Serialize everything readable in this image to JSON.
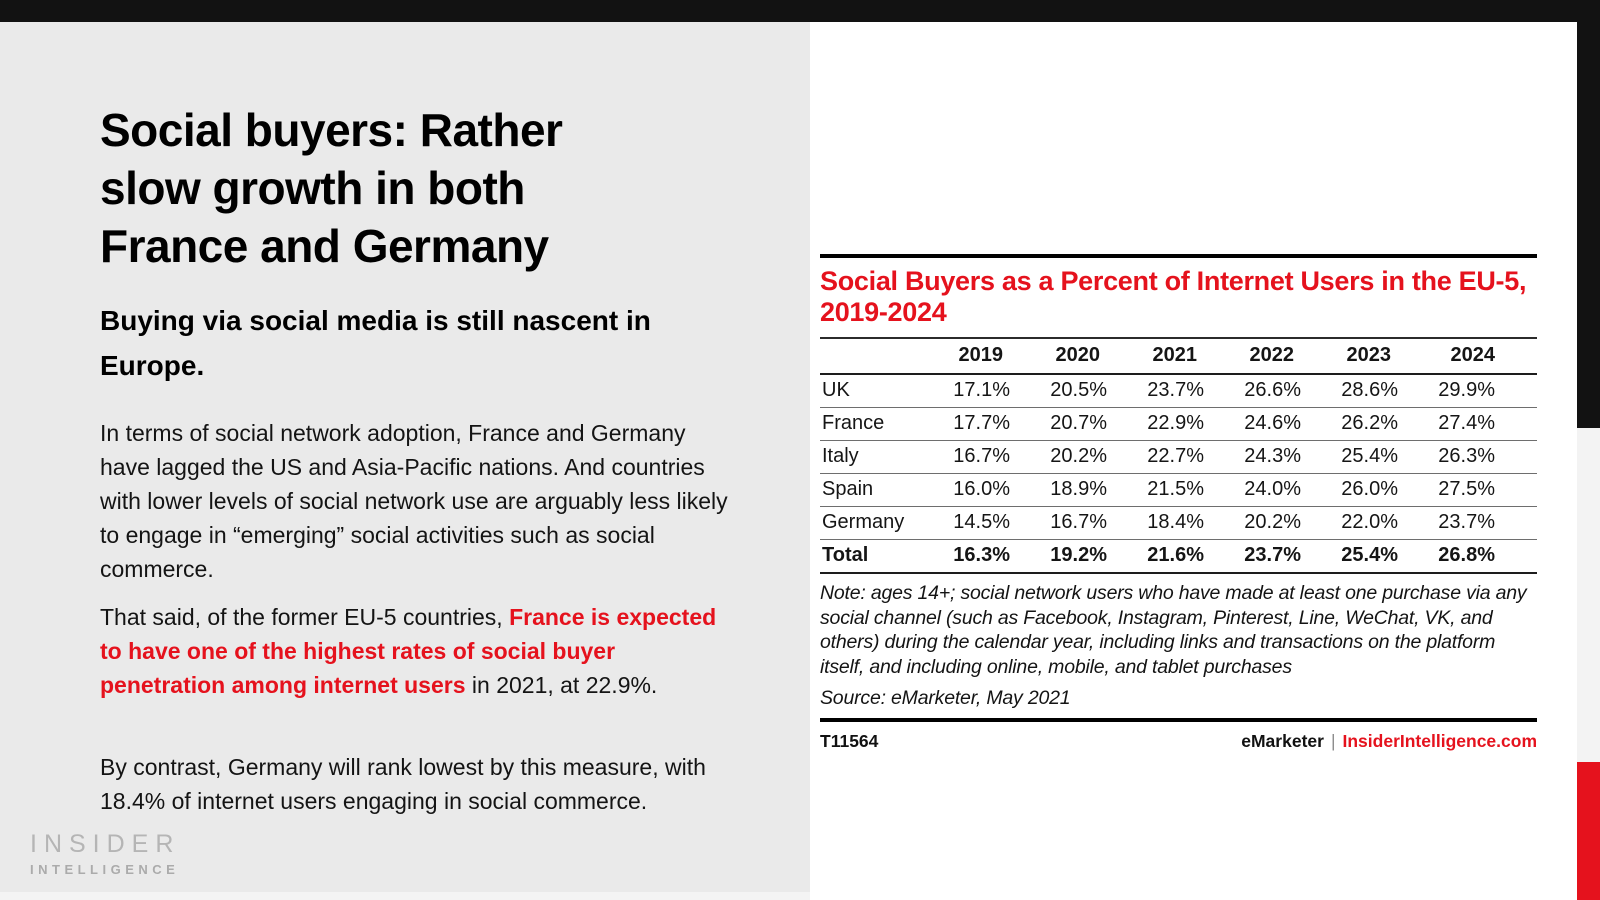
{
  "colors": {
    "accent_red": "#e5121d",
    "panel_gray": "#eaeaea",
    "strip_black": "#121212",
    "edge_gray": "#f3f3f3",
    "logo_gray": "#b5b5b5"
  },
  "slide": {
    "title_lines": [
      "Social buyers: Rather",
      "slow growth in both",
      "France and Germany"
    ],
    "subtitle": "Buying via social media is still nascent in Europe.",
    "paragraphs": [
      {
        "text": "In terms of social network adoption, France and Germany have lagged the US and Asia-Pacific nations. And countries with lower levels of social network use are arguably less likely to engage in “emerging” social activities such as social commerce."
      },
      {
        "before": "That said, of the former EU-5 countries, ",
        "highlight": "France is expected to have one of the highest rates of social buyer penetration among internet users",
        "after": " in 2021, at 22.9%."
      },
      {
        "text": "By contrast, Germany will rank lowest by this measure, with 18.4% of internet users engaging in social commerce."
      }
    ],
    "logo": {
      "line1": "INSIDER",
      "line2": "INTELLIGENCE"
    }
  },
  "chart": {
    "title": "Social Buyers as a Percent of Internet Users in the EU-5, 2019-2024",
    "note": "Note: ages 14+; social network users who have made at least one purchase via any social channel (such as Facebook, Instagram, Pinterest, Line, WeChat, VK, and others) during the calendar year, including links and transactions on the platform itself, and including online, mobile, and tablet purchases",
    "source": "Source: eMarketer, May 2021",
    "footer_left": "T11564",
    "footer_brand": "eMarketer",
    "footer_sep": "|",
    "footer_site": "InsiderIntelligence.com"
  },
  "chart_data": {
    "type": "table",
    "title": "Social Buyers as a Percent of Internet Users in the EU-5, 2019-2024",
    "columns": [
      "2019",
      "2020",
      "2021",
      "2022",
      "2023",
      "2024"
    ],
    "rows": [
      {
        "label": "UK",
        "values": [
          "17.1%",
          "20.5%",
          "23.7%",
          "26.6%",
          "28.6%",
          "29.9%"
        ]
      },
      {
        "label": "France",
        "values": [
          "17.7%",
          "20.7%",
          "22.9%",
          "24.6%",
          "26.2%",
          "27.4%"
        ]
      },
      {
        "label": "Italy",
        "values": [
          "16.7%",
          "20.2%",
          "22.7%",
          "24.3%",
          "25.4%",
          "26.3%"
        ]
      },
      {
        "label": "Spain",
        "values": [
          "16.0%",
          "18.9%",
          "21.5%",
          "24.0%",
          "26.0%",
          "27.5%"
        ]
      },
      {
        "label": "Germany",
        "values": [
          "14.5%",
          "16.7%",
          "18.4%",
          "20.2%",
          "22.0%",
          "23.7%"
        ]
      },
      {
        "label": "Total",
        "values": [
          "16.3%",
          "19.2%",
          "21.6%",
          "23.7%",
          "25.4%",
          "26.8%"
        ],
        "bold": true
      }
    ]
  }
}
